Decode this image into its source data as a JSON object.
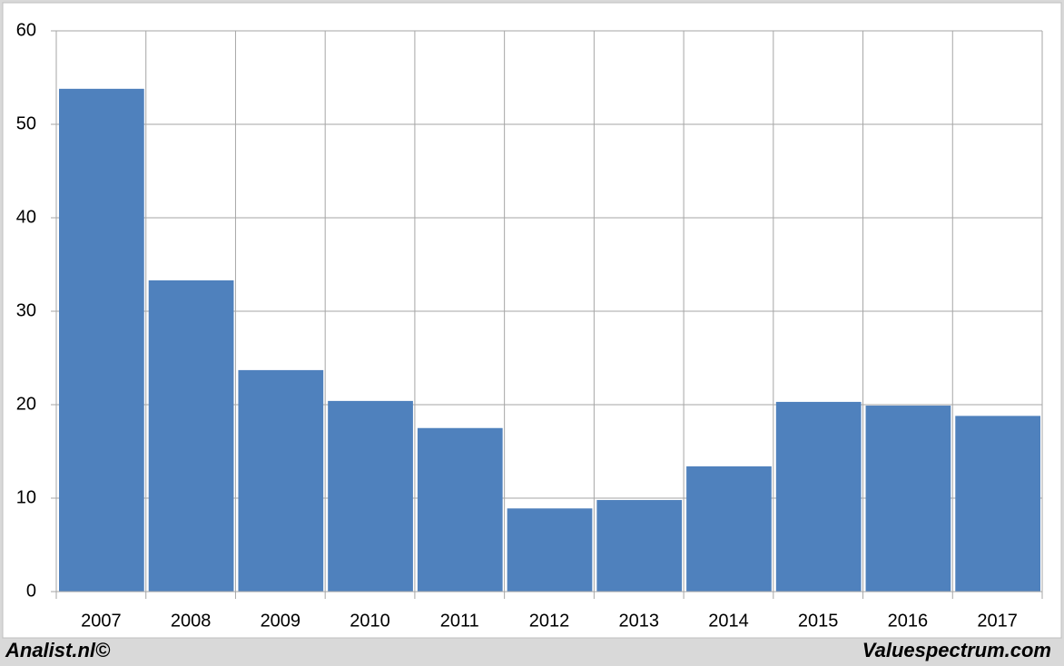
{
  "chart_data": {
    "type": "bar",
    "categories": [
      "2007",
      "2008",
      "2009",
      "2010",
      "2011",
      "2012",
      "2013",
      "2014",
      "2015",
      "2016",
      "2017"
    ],
    "values": [
      53.8,
      33.3,
      23.7,
      20.4,
      17.5,
      8.9,
      9.8,
      13.4,
      20.3,
      19.9,
      18.8
    ],
    "color": "#4f81bd",
    "ylim": [
      0,
      60
    ],
    "yticks": [
      0,
      10,
      20,
      30,
      40,
      50,
      60
    ],
    "grid": true
  },
  "footer": {
    "left": "Analist.nl©",
    "right": "Valuespectrum.com"
  }
}
